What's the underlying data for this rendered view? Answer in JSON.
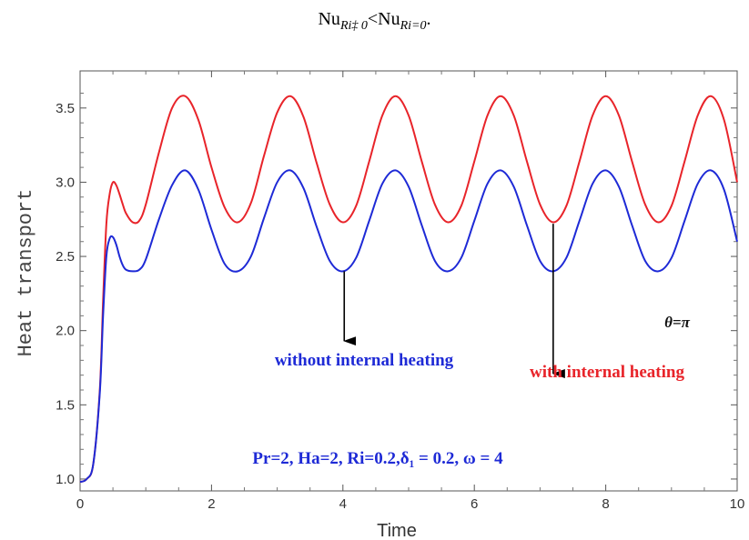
{
  "caption": {
    "left_main": "Nu",
    "left_sub": "Ri‡ 0",
    "op": "<",
    "right_main": "Nu",
    "right_sub": "Ri=0",
    "end": "."
  },
  "chart_data": {
    "type": "line",
    "xlabel": "Time",
    "ylabel": "Heat transport",
    "xlim": [
      0,
      10
    ],
    "ylim": [
      0.92,
      3.75
    ],
    "x_ticks": [
      0,
      2,
      4,
      6,
      8,
      10
    ],
    "y_ticks": [
      1.0,
      1.5,
      2.0,
      2.5,
      3.0,
      3.5
    ],
    "x_tick_labels": [
      "0",
      "2",
      "4",
      "6",
      "8",
      "10"
    ],
    "y_tick_labels": [
      "1.0",
      "1.5",
      "2.0",
      "2.5",
      "3.0",
      "3.5"
    ],
    "grid": false,
    "series": [
      {
        "name": "with internal heating",
        "color": "#e8242a",
        "x": [
          0.0,
          0.1,
          0.2,
          0.3,
          0.35,
          0.4,
          0.45,
          0.5,
          0.55,
          0.6,
          0.65,
          0.7,
          0.8,
          0.9,
          1.0,
          1.2,
          1.4,
          1.6,
          1.8,
          2.0,
          2.2,
          2.4,
          2.6,
          2.8,
          3.0,
          3.2,
          3.4,
          3.6,
          3.8,
          4.0,
          4.2,
          4.4,
          4.6,
          4.8,
          5.0,
          5.2,
          5.4,
          5.6,
          5.8,
          6.0,
          6.2,
          6.4,
          6.6,
          6.8,
          7.0,
          7.2,
          7.4,
          7.6,
          7.8,
          8.0,
          8.2,
          8.4,
          8.6,
          8.8,
          9.0,
          9.2,
          9.4,
          9.6,
          9.8,
          10.0
        ],
        "y": [
          0.98,
          1.0,
          1.1,
          1.6,
          2.2,
          2.72,
          2.92,
          3.0,
          2.98,
          2.92,
          2.85,
          2.79,
          2.73,
          2.74,
          2.85,
          3.2,
          3.5,
          3.58,
          3.42,
          3.1,
          2.83,
          2.73,
          2.86,
          3.18,
          3.47,
          3.58,
          3.44,
          3.13,
          2.85,
          2.73,
          2.84,
          3.14,
          3.45,
          3.58,
          3.45,
          3.14,
          2.85,
          2.73,
          2.84,
          3.14,
          3.45,
          3.58,
          3.45,
          3.14,
          2.85,
          2.73,
          2.84,
          3.14,
          3.45,
          3.58,
          3.45,
          3.14,
          2.85,
          2.73,
          2.84,
          3.14,
          3.45,
          3.58,
          3.42,
          3.0
        ]
      },
      {
        "name": "without internal heating",
        "color": "#1e2ad6",
        "x": [
          0.0,
          0.1,
          0.2,
          0.3,
          0.35,
          0.4,
          0.45,
          0.5,
          0.55,
          0.6,
          0.65,
          0.7,
          0.8,
          0.9,
          1.0,
          1.2,
          1.4,
          1.6,
          1.8,
          2.0,
          2.2,
          2.4,
          2.6,
          2.8,
          3.0,
          3.2,
          3.4,
          3.6,
          3.8,
          4.0,
          4.2,
          4.4,
          4.6,
          4.8,
          5.0,
          5.2,
          5.4,
          5.6,
          5.8,
          6.0,
          6.2,
          6.4,
          6.6,
          6.8,
          7.0,
          7.2,
          7.4,
          7.6,
          7.8,
          8.0,
          8.2,
          8.4,
          8.6,
          8.8,
          9.0,
          9.2,
          9.4,
          9.6,
          9.8,
          10.0
        ],
        "y": [
          0.98,
          1.0,
          1.1,
          1.58,
          2.1,
          2.5,
          2.62,
          2.63,
          2.58,
          2.5,
          2.44,
          2.41,
          2.4,
          2.41,
          2.48,
          2.75,
          2.98,
          3.08,
          2.95,
          2.68,
          2.45,
          2.4,
          2.5,
          2.76,
          3.0,
          3.08,
          2.96,
          2.7,
          2.47,
          2.4,
          2.49,
          2.74,
          2.99,
          3.08,
          2.97,
          2.71,
          2.47,
          2.4,
          2.49,
          2.74,
          2.99,
          3.08,
          2.97,
          2.71,
          2.47,
          2.4,
          2.49,
          2.74,
          2.99,
          3.08,
          2.97,
          2.71,
          2.47,
          2.4,
          2.49,
          2.74,
          2.99,
          3.08,
          2.95,
          2.6
        ]
      }
    ],
    "annotations": {
      "without_label": "without internal heating",
      "with_label": "with internal heating",
      "theta_label": "θ=π",
      "params_label": "Pr=2, Ha=2, Ri=0.2,δ₁ = 0.2, ω = 4",
      "without_arrow": {
        "x": 4.02,
        "y_from": 2.4,
        "y_to": 1.93
      },
      "with_arrow": {
        "x": 7.2,
        "y_from": 2.72,
        "y_to": 1.71
      }
    }
  }
}
